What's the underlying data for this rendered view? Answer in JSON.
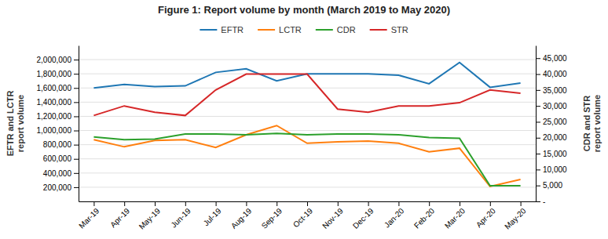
{
  "chart_data": {
    "type": "line",
    "title": "Figure 1: Report volume by month (March 2019 to May 2020)",
    "categories": [
      "Mar-19",
      "Apr-19",
      "May-19",
      "Jun-19",
      "Jul-19",
      "Aug-19",
      "Sep-19",
      "Oct-19",
      "Nov-19",
      "Dec-19",
      "Jan-20",
      "Feb-20",
      "Mar-20",
      "Apr-20",
      "May-20"
    ],
    "series": [
      {
        "name": "EFTR",
        "values": [
          1600000,
          1650000,
          1620000,
          1630000,
          1820000,
          1870000,
          1700000,
          1800000,
          1800000,
          1800000,
          1780000,
          1660000,
          1960000,
          1610000,
          1670000
        ]
      },
      {
        "name": "LCTR",
        "values": [
          870000,
          770000,
          860000,
          870000,
          760000,
          940000,
          1070000,
          820000,
          840000,
          850000,
          820000,
          700000,
          750000,
          210000,
          310000
        ]
      },
      {
        "name": "CDR",
        "values": [
          910000,
          870000,
          880000,
          950000,
          950000,
          940000,
          960000,
          940000,
          950000,
          950000,
          940000,
          900000,
          890000,
          220000,
          220000
        ]
      },
      {
        "name": "STR",
        "axis": "y2",
        "values": [
          27000,
          30000,
          28000,
          27000,
          35000,
          40000,
          40000,
          40000,
          29000,
          28000,
          30000,
          30000,
          31000,
          35000,
          34000
        ]
      }
    ],
    "ylabel": "EFTR and LCTR\nreport volume",
    "y2label": "CDR and STR\nreport volume",
    "ylim": [
      0,
      2200000
    ],
    "yticks": [
      {
        "value": 200000,
        "label": "200,000"
      },
      {
        "value": 400000,
        "label": "400,000"
      },
      {
        "value": 600000,
        "label": "600,000"
      },
      {
        "value": 800000,
        "label": "800,000"
      },
      {
        "value": 1000000,
        "label": "1,000,000"
      },
      {
        "value": 1200000,
        "label": "1,200,000"
      },
      {
        "value": 1400000,
        "label": "1,400,000"
      },
      {
        "value": 1600000,
        "label": "1,600,000"
      },
      {
        "value": 1800000,
        "label": "1,800,000"
      },
      {
        "value": 2000000,
        "label": "2,000,000"
      }
    ],
    "y2lim": [
      0,
      49000
    ],
    "y2ticks": [
      {
        "value": 0,
        "label": "-"
      },
      {
        "value": 5000,
        "label": "5,000"
      },
      {
        "value": 10000,
        "label": "10,000"
      },
      {
        "value": 15000,
        "label": "15,000"
      },
      {
        "value": 20000,
        "label": "20,000"
      },
      {
        "value": 25000,
        "label": "25,000"
      },
      {
        "value": 30000,
        "label": "30,000"
      },
      {
        "value": 35000,
        "label": "35,000"
      },
      {
        "value": 40000,
        "label": "40,000"
      },
      {
        "value": 45000,
        "label": "45,000"
      }
    ],
    "grid": true,
    "legend": "top"
  }
}
